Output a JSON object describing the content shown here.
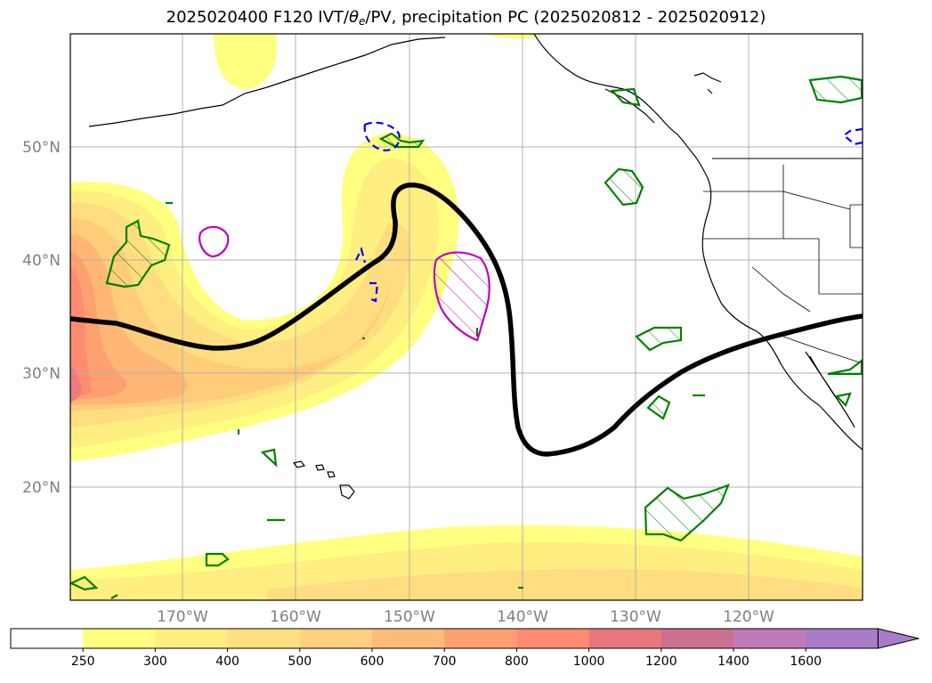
{
  "title": {
    "prefix": "2025020400 F120 IVT/",
    "theta": "θ",
    "theta_sub": "e",
    "suffix": "/PV, precipitation PC (2025020812 - 2025020912)"
  },
  "map": {
    "lat_labels": [
      {
        "lat": 50,
        "label": "50°N"
      },
      {
        "lat": 40,
        "label": "40°N"
      },
      {
        "lat": 30,
        "label": "30°N"
      },
      {
        "lat": 20,
        "label": "20°N"
      }
    ],
    "lon_labels": [
      {
        "lon": -170,
        "label": "170°W"
      },
      {
        "lon": -160,
        "label": "160°W"
      },
      {
        "lon": -150,
        "label": "150°W"
      },
      {
        "lon": -140,
        "label": "140°W"
      },
      {
        "lon": -130,
        "label": "130°W"
      },
      {
        "lon": -120,
        "label": "120°W"
      }
    ],
    "lat_range": [
      10,
      60
    ],
    "lon_range": [
      -180,
      -110
    ],
    "gridlines": true
  },
  "colorbar": {
    "levels": [
      "250",
      "300",
      "400",
      "500",
      "600",
      "700",
      "800",
      "1000",
      "1200",
      "1400",
      "1600"
    ],
    "colors": [
      "#ffffff",
      "#ffff80",
      "#ffee80",
      "#ffe080",
      "#ffd080",
      "#ffbb7a",
      "#ffa070",
      "#ff8c70",
      "#e87880",
      "#cc7090",
      "#c07ab8",
      "#a87cc8"
    ],
    "extend": "max"
  },
  "colors": {
    "ivt_low": "#ffff80",
    "ivt_mid": "#ffd87a",
    "ivt_high": "#ff9070",
    "pv_contour": "#000000",
    "precip_positive": "#008000",
    "precip_negative": "#0000ff",
    "precip_strong": "#c000c0"
  }
}
